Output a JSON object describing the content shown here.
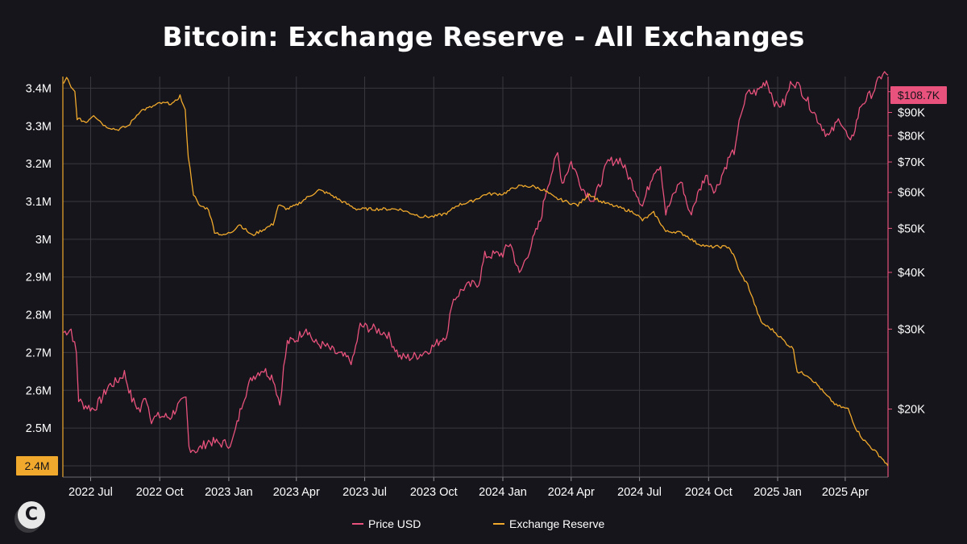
{
  "chart_data": {
    "type": "line",
    "title": "Bitcoin: Exchange Reserve - All Exchanges",
    "x_range": [
      "2022-05-25",
      "2025-05-28"
    ],
    "x_ticks": [
      {
        "date": "2022-07-01",
        "label": "2022 Jul"
      },
      {
        "date": "2022-10-01",
        "label": "2022 Oct"
      },
      {
        "date": "2023-01-01",
        "label": "2023 Jan"
      },
      {
        "date": "2023-04-01",
        "label": "2023 Apr"
      },
      {
        "date": "2023-07-01",
        "label": "2023 Jul"
      },
      {
        "date": "2023-10-01",
        "label": "2023 Oct"
      },
      {
        "date": "2024-01-01",
        "label": "2024 Jan"
      },
      {
        "date": "2024-04-01",
        "label": "2024 Apr"
      },
      {
        "date": "2024-07-01",
        "label": "2024 Jul"
      },
      {
        "date": "2024-10-01",
        "label": "2024 Oct"
      },
      {
        "date": "2025-01-01",
        "label": "2025 Jan"
      },
      {
        "date": "2025-04-01",
        "label": "2025 Apr"
      }
    ],
    "left_axis": {
      "ylim": [
        2.4,
        3.45
      ],
      "ticks": [
        {
          "value": 3.4,
          "label": "3.4M"
        },
        {
          "value": 3.3,
          "label": "3.3M"
        },
        {
          "value": 3.2,
          "label": "3.2M"
        },
        {
          "value": 3.1,
          "label": "3.1M"
        },
        {
          "value": 3.0,
          "label": "3M"
        },
        {
          "value": 2.9,
          "label": "2.9M"
        },
        {
          "value": 2.8,
          "label": "2.8M"
        },
        {
          "value": 2.7,
          "label": "2.7M"
        },
        {
          "value": 2.6,
          "label": "2.6M"
        },
        {
          "value": 2.5,
          "label": "2.5M"
        }
      ],
      "current_label": "2.4M",
      "current_value": 2.4
    },
    "right_axis": {
      "scale": "log",
      "ylim": [
        15000,
        112000
      ],
      "ticks": [
        {
          "value": 100000,
          "label": "$100K"
        },
        {
          "value": 90000,
          "label": "$90K"
        },
        {
          "value": 80000,
          "label": "$80K"
        },
        {
          "value": 70000,
          "label": "$70K"
        },
        {
          "value": 60000,
          "label": "$60K"
        },
        {
          "value": 50000,
          "label": "$50K"
        },
        {
          "value": 40000,
          "label": "$40K"
        },
        {
          "value": 30000,
          "label": "$30K"
        },
        {
          "value": 20000,
          "label": "$20K"
        }
      ],
      "current_label": "$108.7K",
      "current_value": 108700
    },
    "grid": true,
    "legend_position": "bottom-center",
    "colors": {
      "background": "#16151b",
      "price": "#e8527c",
      "reserve": "#f0a92c",
      "grid": "#3a3940"
    },
    "series": [
      {
        "name": "Price USD",
        "axis": "right",
        "color": "#e8527c",
        "points": [
          [
            "2022-05-26",
            29500
          ],
          [
            "2022-06-05",
            30000
          ],
          [
            "2022-06-12",
            26500
          ],
          [
            "2022-06-15",
            21000
          ],
          [
            "2022-06-20",
            20500
          ],
          [
            "2022-07-05",
            20000
          ],
          [
            "2022-07-15",
            21000
          ],
          [
            "2022-07-25",
            22500
          ],
          [
            "2022-08-05",
            23000
          ],
          [
            "2022-08-15",
            24000
          ],
          [
            "2022-08-25",
            21000
          ],
          [
            "2022-09-05",
            19800
          ],
          [
            "2022-09-12",
            21500
          ],
          [
            "2022-09-20",
            19000
          ],
          [
            "2022-10-01",
            19300
          ],
          [
            "2022-10-15",
            19200
          ],
          [
            "2022-10-25",
            20300
          ],
          [
            "2022-11-05",
            21000
          ],
          [
            "2022-11-09",
            16500
          ],
          [
            "2022-11-20",
            16200
          ],
          [
            "2022-12-05",
            17000
          ],
          [
            "2022-12-20",
            16800
          ],
          [
            "2023-01-05",
            16800
          ],
          [
            "2023-01-12",
            18500
          ],
          [
            "2023-01-20",
            21000
          ],
          [
            "2023-02-01",
            23500
          ],
          [
            "2023-02-15",
            24500
          ],
          [
            "2023-03-01",
            23500
          ],
          [
            "2023-03-10",
            20500
          ],
          [
            "2023-03-15",
            24500
          ],
          [
            "2023-03-20",
            28000
          ],
          [
            "2023-04-01",
            28500
          ],
          [
            "2023-04-14",
            30300
          ],
          [
            "2023-04-25",
            28000
          ],
          [
            "2023-05-10",
            27500
          ],
          [
            "2023-05-25",
            26500
          ],
          [
            "2023-06-15",
            25500
          ],
          [
            "2023-06-25",
            30500
          ],
          [
            "2023-07-15",
            30000
          ],
          [
            "2023-07-31",
            29300
          ],
          [
            "2023-08-17",
            26000
          ],
          [
            "2023-09-01",
            26000
          ],
          [
            "2023-09-15",
            26500
          ],
          [
            "2023-10-01",
            27500
          ],
          [
            "2023-10-20",
            29500
          ],
          [
            "2023-10-25",
            34500
          ],
          [
            "2023-11-10",
            37000
          ],
          [
            "2023-11-30",
            38000
          ],
          [
            "2023-12-08",
            43500
          ],
          [
            "2024-01-01",
            44000
          ],
          [
            "2024-01-11",
            46500
          ],
          [
            "2024-01-23",
            39500
          ],
          [
            "2024-02-10",
            47000
          ],
          [
            "2024-02-20",
            52000
          ],
          [
            "2024-02-28",
            61000
          ],
          [
            "2024-03-14",
            73000
          ],
          [
            "2024-03-20",
            63000
          ],
          [
            "2024-04-01",
            70000
          ],
          [
            "2024-04-17",
            61000
          ],
          [
            "2024-05-01",
            57500
          ],
          [
            "2024-05-20",
            70000
          ],
          [
            "2024-06-05",
            71000
          ],
          [
            "2024-06-25",
            61000
          ],
          [
            "2024-07-05",
            56000
          ],
          [
            "2024-07-20",
            67000
          ],
          [
            "2024-07-29",
            69000
          ],
          [
            "2024-08-05",
            54000
          ],
          [
            "2024-08-25",
            64000
          ],
          [
            "2024-09-06",
            53500
          ],
          [
            "2024-09-27",
            65500
          ],
          [
            "2024-10-10",
            60500
          ],
          [
            "2024-10-29",
            72000
          ],
          [
            "2024-11-06",
            75000
          ],
          [
            "2024-11-13",
            90000
          ],
          [
            "2024-11-22",
            99000
          ],
          [
            "2024-12-05",
            100000
          ],
          [
            "2024-12-17",
            106000
          ],
          [
            "2024-12-30",
            93000
          ],
          [
            "2025-01-10",
            94500
          ],
          [
            "2025-01-20",
            106000
          ],
          [
            "2025-01-31",
            102000
          ],
          [
            "2025-02-25",
            86000
          ],
          [
            "2025-03-10",
            79500
          ],
          [
            "2025-03-25",
            87500
          ],
          [
            "2025-04-08",
            76500
          ],
          [
            "2025-04-22",
            93500
          ],
          [
            "2025-05-08",
            100000
          ],
          [
            "2025-05-21",
            110000
          ],
          [
            "2025-05-28",
            108700
          ]
        ]
      },
      {
        "name": "Exchange Reserve",
        "axis": "left",
        "color": "#f0a92c",
        "points": [
          [
            "2022-05-26",
            3.41
          ],
          [
            "2022-05-30",
            3.43
          ],
          [
            "2022-06-05",
            3.4
          ],
          [
            "2022-06-10",
            3.39
          ],
          [
            "2022-06-13",
            3.32
          ],
          [
            "2022-06-25",
            3.31
          ],
          [
            "2022-07-05",
            3.33
          ],
          [
            "2022-07-20",
            3.3
          ],
          [
            "2022-08-05",
            3.29
          ],
          [
            "2022-08-20",
            3.3
          ],
          [
            "2022-09-05",
            3.34
          ],
          [
            "2022-09-20",
            3.35
          ],
          [
            "2022-10-01",
            3.36
          ],
          [
            "2022-10-20",
            3.36
          ],
          [
            "2022-10-28",
            3.38
          ],
          [
            "2022-11-04",
            3.34
          ],
          [
            "2022-11-08",
            3.22
          ],
          [
            "2022-11-15",
            3.12
          ],
          [
            "2022-11-22",
            3.09
          ],
          [
            "2022-12-05",
            3.08
          ],
          [
            "2022-12-13",
            3.02
          ],
          [
            "2022-12-25",
            3.01
          ],
          [
            "2023-01-05",
            3.02
          ],
          [
            "2023-01-15",
            3.04
          ],
          [
            "2023-02-01",
            3.01
          ],
          [
            "2023-02-20",
            3.03
          ],
          [
            "2023-03-01",
            3.04
          ],
          [
            "2023-03-08",
            3.09
          ],
          [
            "2023-03-20",
            3.08
          ],
          [
            "2023-04-01",
            3.09
          ],
          [
            "2023-04-15",
            3.11
          ],
          [
            "2023-05-01",
            3.13
          ],
          [
            "2023-05-15",
            3.12
          ],
          [
            "2023-06-01",
            3.1
          ],
          [
            "2023-06-20",
            3.08
          ],
          [
            "2023-07-15",
            3.08
          ],
          [
            "2023-08-15",
            3.08
          ],
          [
            "2023-09-15",
            3.06
          ],
          [
            "2023-10-01",
            3.06
          ],
          [
            "2023-10-20",
            3.07
          ],
          [
            "2023-11-01",
            3.09
          ],
          [
            "2023-11-20",
            3.1
          ],
          [
            "2023-12-10",
            3.12
          ],
          [
            "2024-01-01",
            3.12
          ],
          [
            "2024-01-20",
            3.14
          ],
          [
            "2024-02-10",
            3.14
          ],
          [
            "2024-02-25",
            3.13
          ],
          [
            "2024-03-10",
            3.11
          ],
          [
            "2024-03-25",
            3.1
          ],
          [
            "2024-04-10",
            3.09
          ],
          [
            "2024-04-25",
            3.12
          ],
          [
            "2024-05-10",
            3.1
          ],
          [
            "2024-05-25",
            3.09
          ],
          [
            "2024-06-10",
            3.08
          ],
          [
            "2024-06-25",
            3.07
          ],
          [
            "2024-07-05",
            3.05
          ],
          [
            "2024-07-20",
            3.07
          ],
          [
            "2024-07-30",
            3.04
          ],
          [
            "2024-08-05",
            3.02
          ],
          [
            "2024-08-20",
            3.02
          ],
          [
            "2024-09-01",
            3.01
          ],
          [
            "2024-09-15",
            2.99
          ],
          [
            "2024-09-30",
            2.98
          ],
          [
            "2024-10-15",
            2.98
          ],
          [
            "2024-10-28",
            2.98
          ],
          [
            "2024-11-05",
            2.95
          ],
          [
            "2024-11-12",
            2.91
          ],
          [
            "2024-11-22",
            2.88
          ],
          [
            "2024-12-01",
            2.83
          ],
          [
            "2024-12-10",
            2.78
          ],
          [
            "2024-12-25",
            2.76
          ],
          [
            "2025-01-05",
            2.74
          ],
          [
            "2025-01-15",
            2.72
          ],
          [
            "2025-01-22",
            2.71
          ],
          [
            "2025-01-27",
            2.65
          ],
          [
            "2025-02-10",
            2.64
          ],
          [
            "2025-02-25",
            2.61
          ],
          [
            "2025-03-05",
            2.59
          ],
          [
            "2025-03-20",
            2.56
          ],
          [
            "2025-04-05",
            2.55
          ],
          [
            "2025-04-15",
            2.5
          ],
          [
            "2025-04-25",
            2.47
          ],
          [
            "2025-05-10",
            2.44
          ],
          [
            "2025-05-20",
            2.42
          ],
          [
            "2025-05-28",
            2.4
          ]
        ]
      }
    ]
  }
}
